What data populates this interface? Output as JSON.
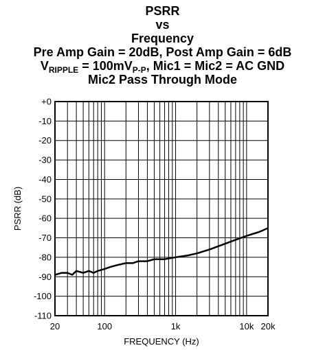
{
  "title": {
    "line1": "PSRR",
    "line2": "vs",
    "line3": "Frequency",
    "line4": "Pre Amp Gain = 20dB, Post Amp Gain = 6dB",
    "line5_prefix": "V",
    "line5_sub1": "RIPPLE",
    "line5_mid": " = 100mV",
    "line5_sub2": "P-P",
    "line5_suffix": ", Mic1 = Mic2 = AC GND",
    "line6": "Mic2 Pass Through Mode"
  },
  "chart_data": {
    "type": "line",
    "xlabel": "FREQUENCY (Hz)",
    "ylabel": "PSRR (dB)",
    "x_scale": "log",
    "xlim": [
      20,
      20000
    ],
    "ylim": [
      -110,
      0
    ],
    "grid": true,
    "x_tick_labels": [
      {
        "value": 20,
        "label": "20"
      },
      {
        "value": 100,
        "label": "100"
      },
      {
        "value": 1000,
        "label": "1k"
      },
      {
        "value": 10000,
        "label": "10k"
      },
      {
        "value": 20000,
        "label": "20k"
      }
    ],
    "y_ticks": [
      0,
      -10,
      -20,
      -30,
      -40,
      -50,
      -60,
      -70,
      -80,
      -90,
      -100,
      -110
    ],
    "y_tick_labels": [
      "+0",
      "-10",
      "-20",
      "-30",
      "-40",
      "-50",
      "-60",
      "-70",
      "-80",
      "-90",
      "-100",
      "-110"
    ],
    "series": [
      {
        "color": "#000000",
        "x": [
          20,
          25,
          30,
          35,
          40,
          50,
          60,
          70,
          80,
          100,
          120,
          150,
          200,
          250,
          300,
          400,
          500,
          700,
          1000,
          1500,
          2000,
          3000,
          5000,
          7000,
          10000,
          15000,
          20000
        ],
        "y": [
          -89,
          -88,
          -88,
          -89,
          -87,
          -88,
          -87,
          -88,
          -87,
          -86,
          -85,
          -84,
          -83,
          -83,
          -82,
          -82,
          -81,
          -81,
          -80,
          -79,
          -78,
          -76,
          -73,
          -71,
          -69,
          -67,
          -65
        ]
      }
    ]
  }
}
